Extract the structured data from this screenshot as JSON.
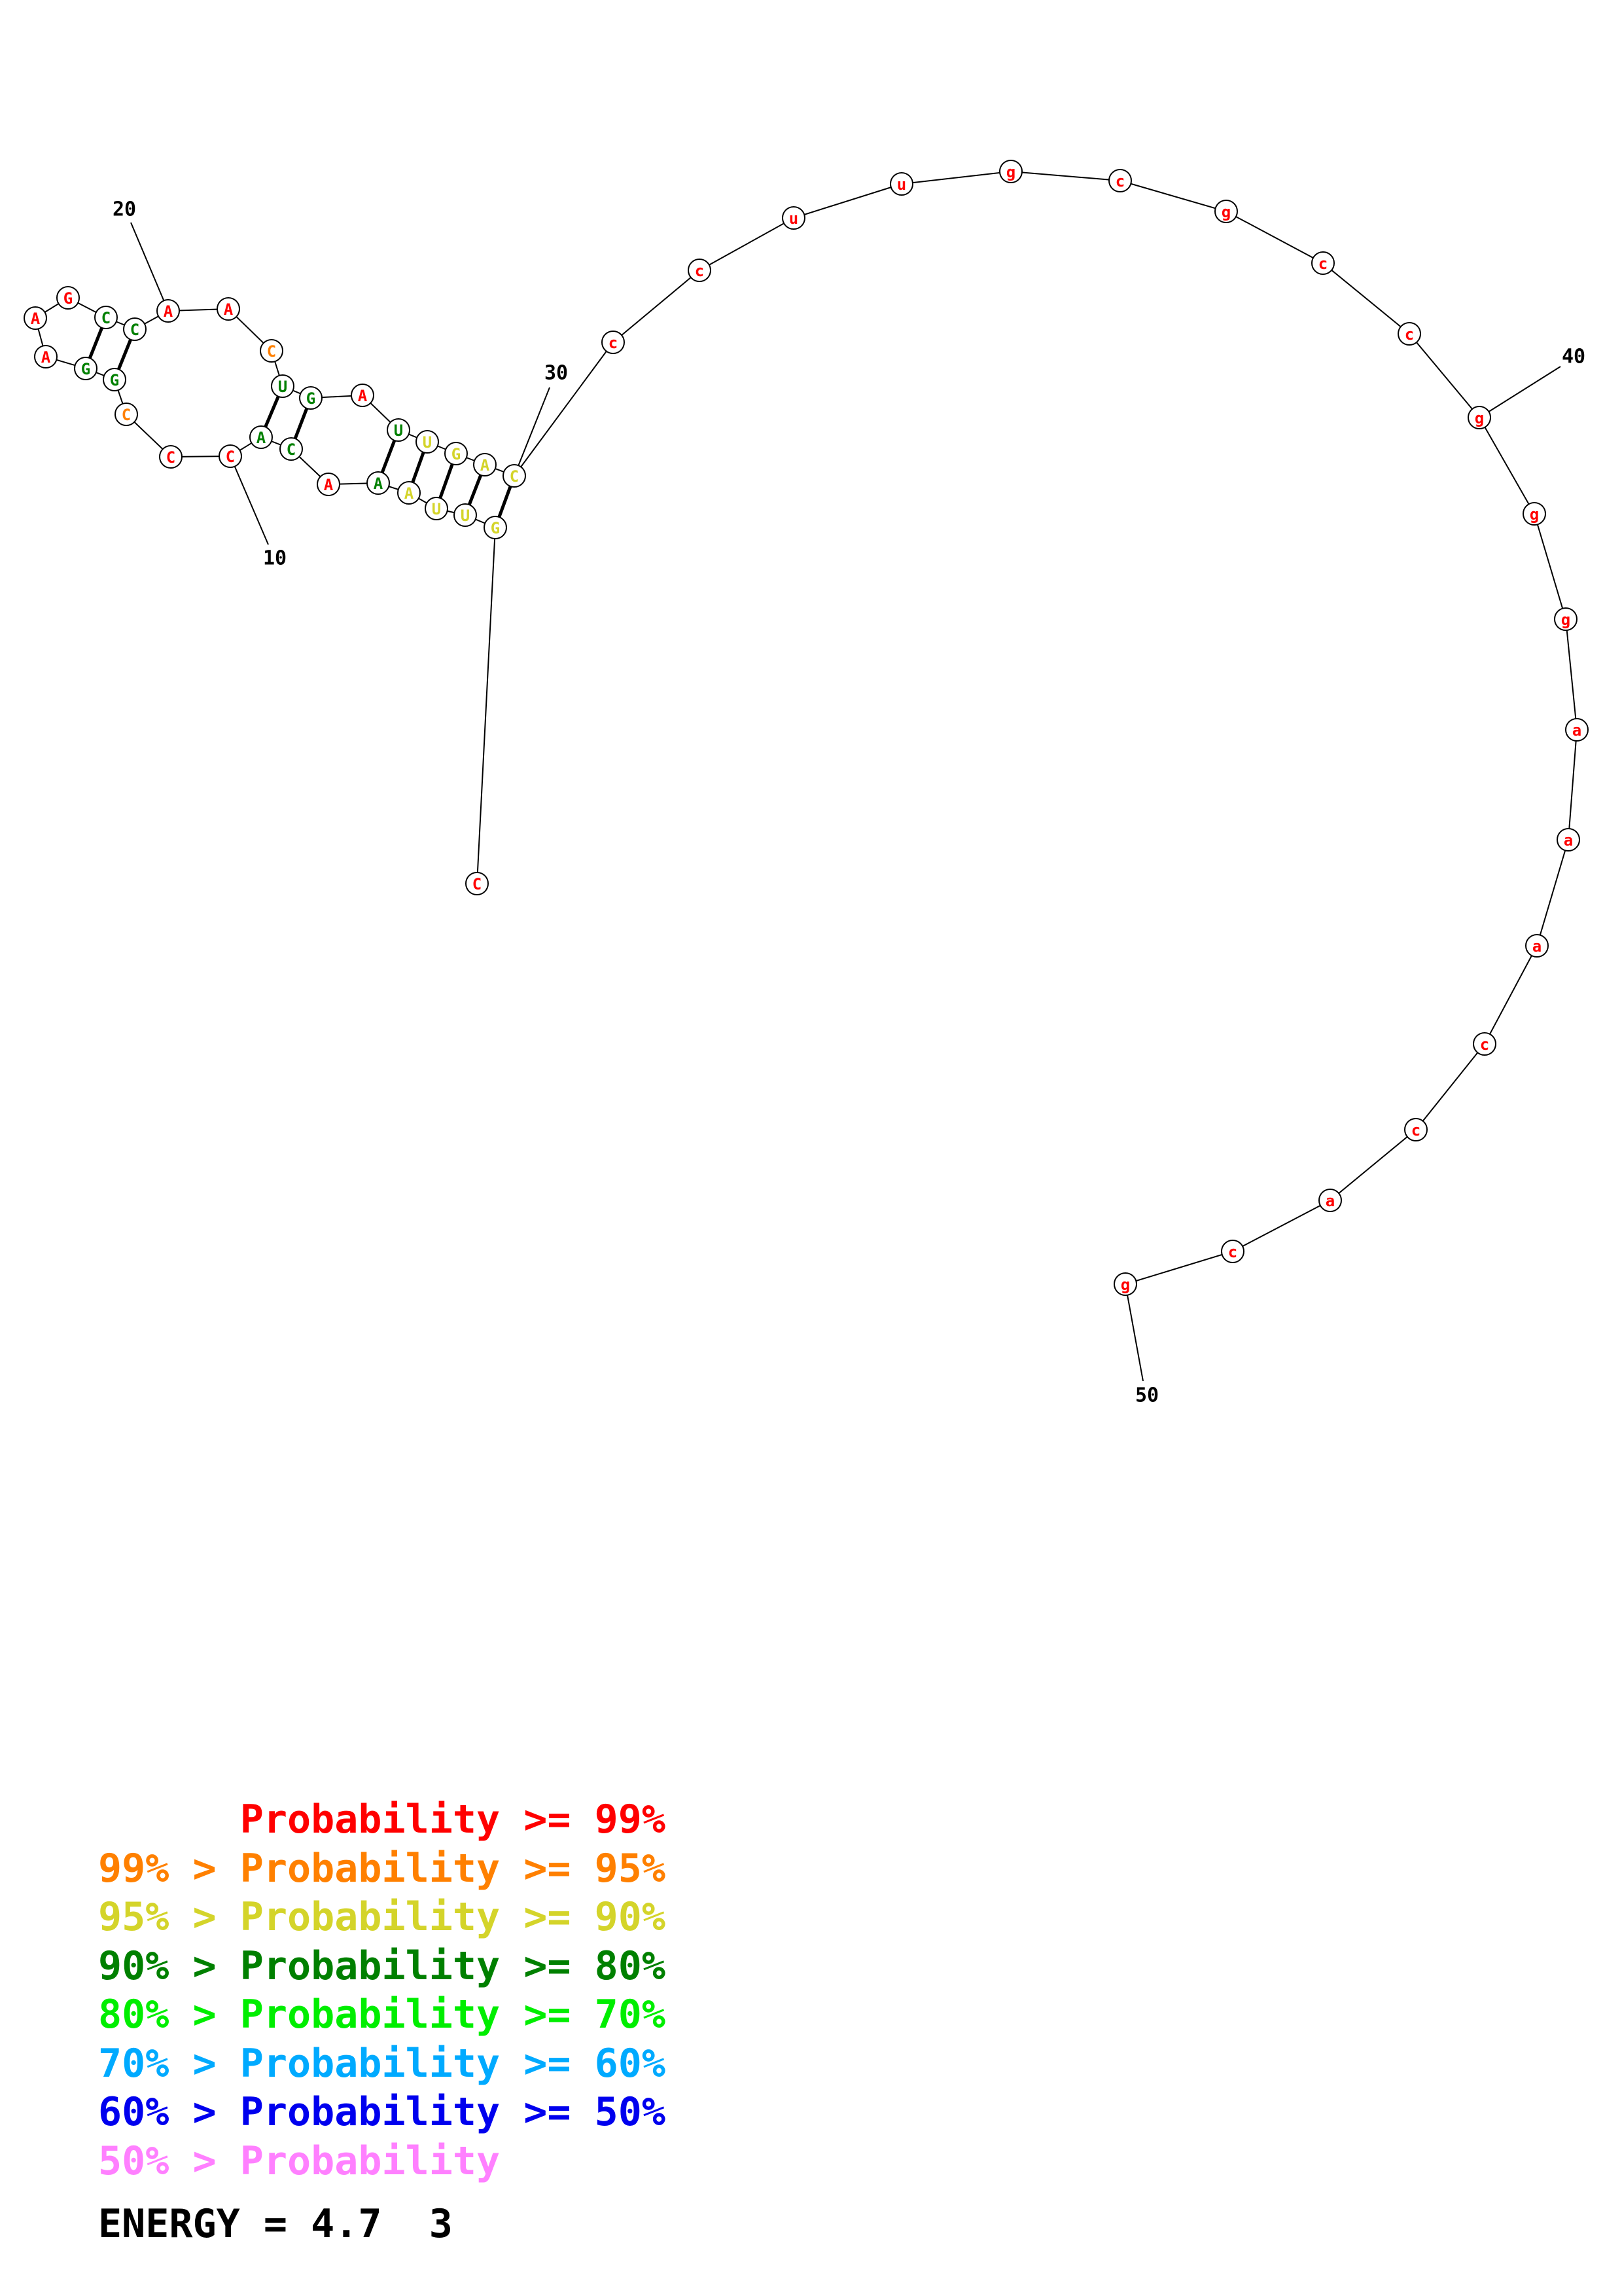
{
  "structure": {
    "nucleotides": [
      {
        "n": 1,
        "base": "C",
        "prob": "p99"
      },
      {
        "n": 2,
        "base": "G",
        "prob": "p95"
      },
      {
        "n": 3,
        "base": "U",
        "prob": "p95"
      },
      {
        "n": 4,
        "base": "U",
        "prob": "p95"
      },
      {
        "n": 5,
        "base": "A",
        "prob": "p95"
      },
      {
        "n": 6,
        "base": "A",
        "prob": "p80"
      },
      {
        "n": 7,
        "base": "A",
        "prob": "p99"
      },
      {
        "n": 8,
        "base": "C",
        "prob": "p80"
      },
      {
        "n": 9,
        "base": "A",
        "prob": "p80"
      },
      {
        "n": 10,
        "base": "C",
        "prob": "p99"
      },
      {
        "n": 11,
        "base": "C",
        "prob": "p99"
      },
      {
        "n": 12,
        "base": "C",
        "prob": "p95o"
      },
      {
        "n": 13,
        "base": "G",
        "prob": "p80"
      },
      {
        "n": 14,
        "base": "G",
        "prob": "p80"
      },
      {
        "n": 15,
        "base": "A",
        "prob": "p99"
      },
      {
        "n": 16,
        "base": "A",
        "prob": "p99"
      },
      {
        "n": 17,
        "base": "G",
        "prob": "p99"
      },
      {
        "n": 18,
        "base": "C",
        "prob": "p80"
      },
      {
        "n": 19,
        "base": "C",
        "prob": "p80"
      },
      {
        "n": 20,
        "base": "A",
        "prob": "p99"
      },
      {
        "n": 21,
        "base": "A",
        "prob": "p99"
      },
      {
        "n": 22,
        "base": "C",
        "prob": "p95o"
      },
      {
        "n": 23,
        "base": "U",
        "prob": "p80"
      },
      {
        "n": 24,
        "base": "G",
        "prob": "p80"
      },
      {
        "n": 25,
        "base": "A",
        "prob": "p99"
      },
      {
        "n": 26,
        "base": "U",
        "prob": "p80"
      },
      {
        "n": 27,
        "base": "U",
        "prob": "p95"
      },
      {
        "n": 28,
        "base": "G",
        "prob": "p95"
      },
      {
        "n": 29,
        "base": "A",
        "prob": "p95"
      },
      {
        "n": 30,
        "base": "C",
        "prob": "p95"
      },
      {
        "n": 31,
        "base": "c",
        "prob": "p99"
      },
      {
        "n": 32,
        "base": "c",
        "prob": "p99"
      },
      {
        "n": 33,
        "base": "u",
        "prob": "p99"
      },
      {
        "n": 34,
        "base": "u",
        "prob": "p99"
      },
      {
        "n": 35,
        "base": "g",
        "prob": "p99"
      },
      {
        "n": 36,
        "base": "c",
        "prob": "p99"
      },
      {
        "n": 37,
        "base": "g",
        "prob": "p99"
      },
      {
        "n": 38,
        "base": "c",
        "prob": "p99"
      },
      {
        "n": 39,
        "base": "c",
        "prob": "p99"
      },
      {
        "n": 40,
        "base": "g",
        "prob": "p99"
      },
      {
        "n": 41,
        "base": "g",
        "prob": "p99"
      },
      {
        "n": 42,
        "base": "g",
        "prob": "p99"
      },
      {
        "n": 43,
        "base": "a",
        "prob": "p99"
      },
      {
        "n": 44,
        "base": "a",
        "prob": "p99"
      },
      {
        "n": 45,
        "base": "a",
        "prob": "p99"
      },
      {
        "n": 46,
        "base": "c",
        "prob": "p99"
      },
      {
        "n": 47,
        "base": "c",
        "prob": "p99"
      },
      {
        "n": 48,
        "base": "a",
        "prob": "p99"
      },
      {
        "n": 49,
        "base": "c",
        "prob": "p99"
      },
      {
        "n": 50,
        "base": "g",
        "prob": "p99"
      }
    ],
    "pairs": [
      [
        2,
        30
      ],
      [
        3,
        29
      ],
      [
        4,
        28
      ],
      [
        5,
        27
      ],
      [
        6,
        26
      ],
      [
        8,
        24
      ],
      [
        9,
        23
      ],
      [
        13,
        19
      ],
      [
        14,
        18
      ]
    ],
    "index_labels": [
      {
        "n": 10,
        "text": "10"
      },
      {
        "n": 20,
        "text": "20"
      },
      {
        "n": 30,
        "text": "30"
      },
      {
        "n": 40,
        "text": "40"
      },
      {
        "n": 50,
        "text": "50"
      }
    ]
  },
  "colors": {
    "p99": "#ff0000",
    "p95o": "#ff8000",
    "p95": "#d4d42a",
    "p80": "#008000",
    "p70": "#00ff00",
    "p60": "#00aaff",
    "p50": "#0000ff",
    "plow": "#ff80ff"
  },
  "legend": [
    {
      "text": "      Probability >= 99%",
      "color": "#ff0000"
    },
    {
      "text": "99% > Probability >= 95%",
      "color": "#ff8000"
    },
    {
      "text": "95% > Probability >= 90%",
      "color": "#d4d42a"
    },
    {
      "text": "90% > Probability >= 80%",
      "color": "#008000"
    },
    {
      "text": "80% > Probability >= 70%",
      "color": "#00ee00"
    },
    {
      "text": "70% > Probability >= 60%",
      "color": "#00aaff"
    },
    {
      "text": "60% > Probability >= 50%",
      "color": "#0000ee"
    },
    {
      "text": "50% > Probability",
      "color": "#ff80ff"
    }
  ],
  "energy": "ENERGY = 4.7  3"
}
